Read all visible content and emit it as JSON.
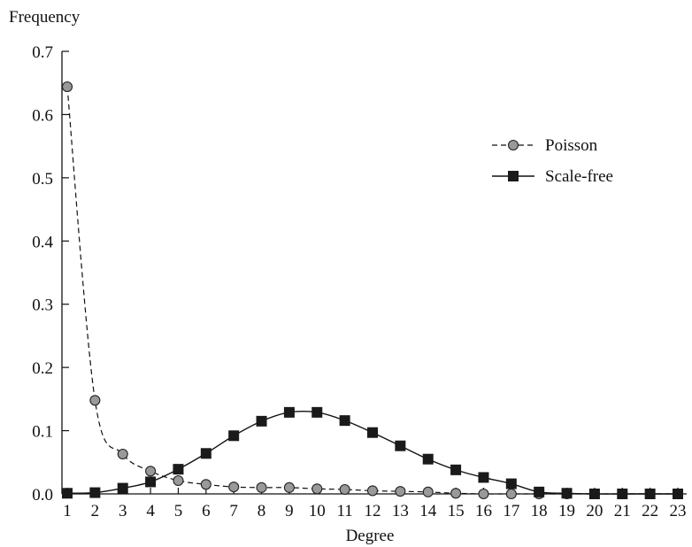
{
  "chart_data": {
    "type": "line",
    "title": "",
    "xlabel": "Degree",
    "ylabel": "Frequency",
    "x": [
      1,
      2,
      3,
      4,
      5,
      6,
      7,
      8,
      9,
      10,
      11,
      12,
      13,
      14,
      15,
      16,
      17,
      18,
      19,
      20,
      21,
      22,
      23
    ],
    "xlim": [
      1,
      23
    ],
    "ylim": [
      0,
      0.7
    ],
    "yticks": [
      "0.0",
      "0.1",
      "0.2",
      "0.3",
      "0.4",
      "0.5",
      "0.6",
      "0.7"
    ],
    "xticks": [
      "1",
      "2",
      "3",
      "4",
      "5",
      "6",
      "7",
      "8",
      "9",
      "10",
      "11",
      "12",
      "13",
      "14",
      "15",
      "16",
      "17",
      "18",
      "19",
      "20",
      "21",
      "22",
      "23"
    ],
    "grid": false,
    "legend_position": "top-right",
    "series": [
      {
        "name": "Poisson",
        "marker": "circle",
        "line_style": "dashed",
        "color": "#999999",
        "values": [
          0.644,
          0.148,
          0.063,
          0.036,
          0.021,
          0.015,
          0.011,
          0.01,
          0.01,
          0.008,
          0.007,
          0.005,
          0.004,
          0.003,
          0.001,
          0.0,
          0.0,
          0.0,
          0.0,
          0.0,
          0.0,
          0.0,
          0.0
        ]
      },
      {
        "name": "Scale-free",
        "marker": "square",
        "line_style": "solid",
        "color": "#1a1a1a",
        "values": [
          0.001,
          0.002,
          0.009,
          0.019,
          0.039,
          0.064,
          0.092,
          0.115,
          0.129,
          0.129,
          0.116,
          0.097,
          0.076,
          0.055,
          0.038,
          0.026,
          0.016,
          0.003,
          0.001,
          0.0,
          0.0,
          0.0,
          0.0
        ]
      }
    ]
  }
}
